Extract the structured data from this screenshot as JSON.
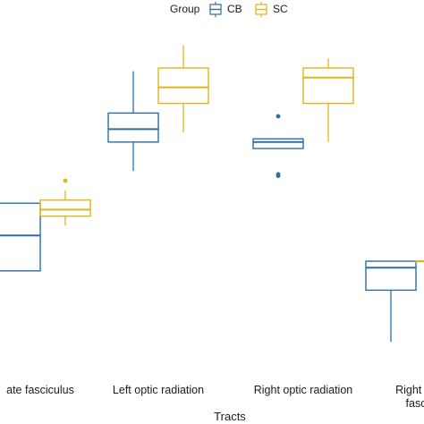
{
  "chart_data": {
    "type": "boxplot",
    "xlabel": "Tracts",
    "ylabel": "",
    "categories": [
      "ate fasciculus",
      "Left optic radiation",
      "Right optic radiation",
      "Right su fasc"
    ],
    "category_label_lines": [
      [
        "ate fasciculus"
      ],
      [
        "Left optic radiation"
      ],
      [
        "Right optic radiation"
      ],
      [
        "Right su",
        "fasc"
      ]
    ],
    "ylim": [
      0,
      100
    ],
    "grid": false,
    "legend": {
      "title": "Group",
      "placement": "top",
      "entries": [
        "CB",
        "SC"
      ]
    },
    "colors": {
      "CB": "#2b6ea6",
      "SC": "#e0b51a"
    },
    "series": [
      {
        "name": "CB",
        "boxes": [
          {
            "category": "ate fasciculus",
            "min": 32,
            "q1": 32,
            "median": 43,
            "q3": 53,
            "max": 53,
            "outliers": []
          },
          {
            "category": "Left optic radiation",
            "min": 63,
            "q1": 72,
            "median": 76,
            "q3": 81,
            "max": 94,
            "outliers": []
          },
          {
            "category": "Right optic radiation",
            "min": 70,
            "q1": 70,
            "median": 72,
            "q3": 73,
            "max": 73,
            "outliers": [
              80,
              62,
              61.5
            ]
          },
          {
            "category": "Right su fasc",
            "min": 10,
            "q1": 26,
            "median": 33,
            "q3": 35,
            "max": 35,
            "outliers": []
          }
        ]
      },
      {
        "name": "SC",
        "boxes": [
          {
            "category": "ate fasciculus",
            "min": 46,
            "q1": 49,
            "median": 51,
            "q3": 54,
            "max": 57,
            "outliers": [
              60
            ]
          },
          {
            "category": "Left optic radiation",
            "min": 75,
            "q1": 84,
            "median": 89,
            "q3": 95,
            "max": 102,
            "outliers": []
          },
          {
            "category": "Right optic radiation",
            "min": 72,
            "q1": 84,
            "median": 92,
            "q3": 95,
            "max": 98,
            "outliers": []
          },
          {
            "category": "Right su fasc",
            "min": 35,
            "q1": 35,
            "median": 35,
            "q3": 35,
            "max": 35,
            "outliers": []
          }
        ]
      }
    ]
  }
}
